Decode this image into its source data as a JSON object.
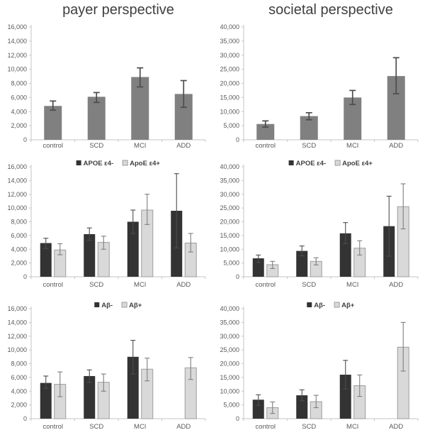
{
  "figure": {
    "background": "#ffffff",
    "layout": "2x3-grid-of-bar-charts"
  },
  "colors": {
    "single_bar": "#808080",
    "dark_bar": "#333333",
    "light_bar": "#d9d9d9",
    "light_bar_border": "#9e9e9e",
    "error_dark": "#4d4d4d",
    "error_light": "#7f7f7f",
    "axis": "#c6c6c6",
    "tick_label": "#595959",
    "title_text": "#404040",
    "legend_text": "#404040"
  },
  "chart_data": [
    {
      "id": "payer-overall",
      "type": "bar",
      "title": "payer perspective",
      "categories": [
        "control",
        "SCD",
        "MCI",
        "ADD"
      ],
      "ylim": [
        0,
        16000
      ],
      "ytick_step": 2000,
      "grid": false,
      "legend": null,
      "series": [
        {
          "role": "single",
          "values": [
            4800,
            6100,
            8900,
            6500
          ],
          "err_low": [
            4200,
            5300,
            7500,
            4600
          ],
          "err_high": [
            5500,
            6700,
            10200,
            8400
          ]
        }
      ]
    },
    {
      "id": "societal-overall",
      "type": "bar",
      "title": "societal perspective",
      "categories": [
        "control",
        "SCD",
        "MCI",
        "ADD"
      ],
      "ylim": [
        0,
        40000
      ],
      "ytick_step": 5000,
      "grid": false,
      "legend": null,
      "series": [
        {
          "role": "single",
          "values": [
            5600,
            8400,
            15000,
            22600
          ],
          "err_low": [
            4500,
            7100,
            12500,
            16300
          ],
          "err_high": [
            6700,
            9600,
            17500,
            29100
          ]
        }
      ]
    },
    {
      "id": "payer-apoe",
      "type": "bar",
      "title": "",
      "categories": [
        "control",
        "SCD",
        "MCI",
        "ADD"
      ],
      "ylim": [
        0,
        16000
      ],
      "ytick_step": 2000,
      "grid": false,
      "legend": [
        "APOE ε4-",
        "ApoE ε4+"
      ],
      "legend_position": "top",
      "series": [
        {
          "name": "APOE ε4-",
          "role": "dark",
          "values": [
            4900,
            6200,
            8000,
            9600
          ],
          "err_low": [
            4100,
            5300,
            6300,
            4200
          ],
          "err_high": [
            5600,
            7100,
            9700,
            15000
          ]
        },
        {
          "name": "ApoE ε4+",
          "role": "light",
          "values": [
            3900,
            5000,
            9700,
            4900
          ],
          "err_low": [
            3200,
            4000,
            7600,
            3600
          ],
          "err_high": [
            4800,
            5900,
            12000,
            6300
          ]
        }
      ]
    },
    {
      "id": "societal-apoe",
      "type": "bar",
      "title": "",
      "categories": [
        "control",
        "SCD",
        "MCI",
        "ADD"
      ],
      "ylim": [
        0,
        40000
      ],
      "ytick_step": 5000,
      "grid": false,
      "legend": [
        "APOE ε4-",
        "ApoE ε4+"
      ],
      "legend_position": "top",
      "series": [
        {
          "name": "APOE ε4-",
          "role": "dark",
          "values": [
            6700,
            9400,
            15800,
            18400
          ],
          "err_low": [
            5200,
            7600,
            12100,
            7500
          ],
          "err_high": [
            7900,
            11200,
            19700,
            29300
          ]
        },
        {
          "name": "ApoE ε4+",
          "role": "light",
          "values": [
            4400,
            5600,
            10400,
            25500
          ],
          "err_low": [
            3000,
            4300,
            7900,
            17400
          ],
          "err_high": [
            5600,
            6900,
            13100,
            33800
          ]
        }
      ]
    },
    {
      "id": "payer-abeta",
      "type": "bar",
      "title": "",
      "categories": [
        "control",
        "SCD",
        "MCI",
        "ADD"
      ],
      "ylim": [
        0,
        16000
      ],
      "ytick_step": 2000,
      "grid": false,
      "legend": [
        "Aβ-",
        "Aβ+"
      ],
      "legend_position": "top",
      "series": [
        {
          "name": "Aβ-",
          "role": "dark",
          "values": [
            5200,
            6200,
            9000,
            null
          ],
          "err_low": [
            4400,
            5300,
            6500,
            null
          ],
          "err_high": [
            6200,
            7100,
            11400,
            null
          ]
        },
        {
          "name": "Aβ+",
          "role": "light",
          "values": [
            5000,
            5300,
            7200,
            7400
          ],
          "err_low": [
            3200,
            4000,
            5500,
            5700
          ],
          "err_high": [
            6800,
            6500,
            8800,
            8900
          ]
        }
      ]
    },
    {
      "id": "societal-abeta",
      "type": "bar",
      "title": "",
      "categories": [
        "control",
        "SCD",
        "MCI",
        "ADD"
      ],
      "ylim": [
        0,
        40000
      ],
      "ytick_step": 5000,
      "grid": false,
      "legend": [
        "Aβ-",
        "Aβ+"
      ],
      "legend_position": "top",
      "series": [
        {
          "name": "Aβ-",
          "role": "dark",
          "values": [
            6900,
            8500,
            16000,
            null
          ],
          "err_low": [
            4900,
            6500,
            10800,
            null
          ],
          "err_high": [
            8700,
            10500,
            21200,
            null
          ]
        },
        {
          "name": "Aβ+",
          "role": "light",
          "values": [
            4000,
            6200,
            12000,
            26000
          ],
          "err_low": [
            1900,
            4000,
            8100,
            17300
          ],
          "err_high": [
            6100,
            8500,
            15900,
            35000
          ]
        }
      ]
    }
  ]
}
